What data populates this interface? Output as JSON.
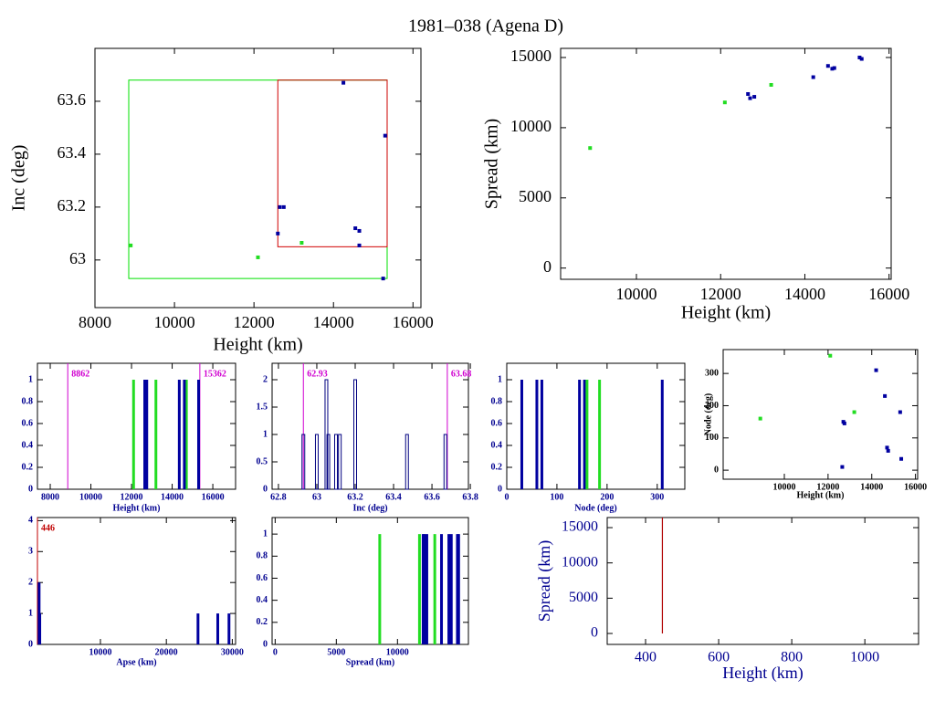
{
  "title": "1981–038 (Agena D)",
  "chart_data": [
    {
      "type": "scatter",
      "xlabel": "Height (km)",
      "ylabel": "Inc (deg)",
      "text_color": "#000000",
      "xlim": [
        8000,
        16200
      ],
      "ylim": [
        62.82,
        63.8
      ],
      "xticks": [
        8000,
        10000,
        12000,
        14000,
        16000
      ],
      "yticks": [
        63,
        63.2,
        63.4,
        63.6
      ],
      "rects": [
        {
          "color": "#00e000",
          "x": [
            8850,
            15350
          ],
          "y": [
            62.93,
            63.68
          ]
        },
        {
          "color": "#d00000",
          "x": [
            12600,
            15350
          ],
          "y": [
            63.05,
            63.68
          ]
        }
      ],
      "series": [
        {
          "color": "#22dd22",
          "x": [
            8900,
            12100,
            13200
          ],
          "values": [
            63.055,
            63.01,
            63.065
          ]
        },
        {
          "color": "#0000a0",
          "x": [
            12650,
            12750,
            12600,
            14250,
            14550,
            14650,
            14650,
            15300,
            15250
          ],
          "values": [
            63.2,
            63.2,
            63.1,
            63.67,
            63.12,
            63.11,
            63.055,
            63.47,
            62.93
          ]
        }
      ]
    },
    {
      "type": "scatter",
      "xlabel": "Height (km)",
      "ylabel": "Spread (km)",
      "text_color": "#000000",
      "xlim": [
        8200,
        16050
      ],
      "ylim": [
        -800,
        15650
      ],
      "xticks": [
        10000,
        12000,
        14000,
        16000
      ],
      "yticks": [
        0,
        5000,
        10000,
        15000
      ],
      "series": [
        {
          "color": "#22dd22",
          "x": [
            8900,
            12100,
            13200
          ],
          "values": [
            8550,
            11800,
            13050
          ]
        },
        {
          "color": "#0000a0",
          "x": [
            12650,
            12700,
            12800,
            14200,
            14550,
            14650,
            14700,
            15300,
            15350
          ],
          "values": [
            12400,
            12100,
            12200,
            13600,
            14400,
            14200,
            14250,
            15000,
            14900
          ]
        }
      ]
    },
    {
      "type": "histogram",
      "xlabel": "Height (km)",
      "text_color": "#000090",
      "xlim": [
        7370,
        17120
      ],
      "ylim": [
        0,
        1.15
      ],
      "xticks": [
        8000,
        10000,
        12000,
        14000,
        16000
      ],
      "yticks": [
        0,
        0.2,
        0.4,
        0.6,
        0.8,
        1
      ],
      "markers": [
        {
          "x": 8862,
          "color": "#d000d0"
        },
        {
          "x": 15362,
          "color": "#d000d0"
        }
      ],
      "series": [
        {
          "color": "#22dd22",
          "x": [
            12100,
            13200,
            14700
          ],
          "values": [
            1,
            1,
            1
          ]
        },
        {
          "color": "#0000a0",
          "x": [
            12650,
            12750,
            14350,
            14600,
            15300
          ],
          "values": [
            1,
            1,
            1,
            1,
            1
          ]
        }
      ]
    },
    {
      "type": "histogram",
      "xlabel": "Inc (deg)",
      "text_color": "#000090",
      "bar_style": "outline",
      "xlim": [
        62.767,
        63.79
      ],
      "ylim": [
        0,
        2.3
      ],
      "xticks": [
        62.8,
        63,
        63.2,
        63.4,
        63.6,
        63.8
      ],
      "yticks": [
        0,
        0.5,
        1,
        1.5,
        2
      ],
      "markers": [
        {
          "x": 62.93,
          "color": "#d000d0"
        },
        {
          "x": 63.68,
          "color": "#d000d0"
        }
      ],
      "series": [
        {
          "color": "#000080",
          "x": [
            62.93,
            63.0,
            63.05,
            63.06,
            63.1,
            63.12,
            63.2,
            63.47,
            63.67
          ],
          "values": [
            1,
            1,
            2,
            1,
            1,
            1,
            2,
            1,
            1
          ]
        }
      ]
    },
    {
      "type": "histogram",
      "xlabel": "Node (deg)",
      "text_color": "#000090",
      "xlim": [
        0,
        355
      ],
      "ylim": [
        0,
        1.15
      ],
      "xticks": [
        0,
        100,
        200,
        300
      ],
      "yticks": [
        0,
        0.2,
        0.4,
        0.6,
        0.8,
        1
      ],
      "series": [
        {
          "color": "#0000a0",
          "x": [
            30,
            60,
            70,
            145,
            155,
            310
          ],
          "values": [
            1,
            1,
            1,
            1,
            1,
            1
          ]
        },
        {
          "color": "#22dd22",
          "x": [
            160,
            185
          ],
          "values": [
            1,
            1
          ]
        }
      ]
    },
    {
      "type": "scatter",
      "xlabel": "Height (km)",
      "ylabel": "Node (deg)",
      "text_color": "#000000",
      "xlim": [
        7200,
        16100
      ],
      "ylim": [
        -28,
        374
      ],
      "xticks": [
        10000,
        12000,
        14000,
        16000
      ],
      "yticks": [
        0,
        100,
        200,
        300
      ],
      "series": [
        {
          "color": "#22dd22",
          "x": [
            8900,
            12100,
            13200
          ],
          "values": [
            160,
            355,
            180
          ]
        },
        {
          "color": "#0000a0",
          "x": [
            12700,
            12750,
            12650,
            14200,
            14600,
            14700,
            14750,
            15300,
            15350
          ],
          "values": [
            150,
            145,
            10,
            310,
            230,
            70,
            60,
            180,
            35
          ]
        }
      ]
    },
    {
      "type": "histogram",
      "xlabel": "Apse (km)",
      "text_color": "#000090",
      "xlim": [
        446,
        30500
      ],
      "ylim": [
        0,
        4.1
      ],
      "xticks": [
        10000,
        20000,
        30000
      ],
      "yticks": [
        0,
        1,
        2,
        3,
        4
      ],
      "markers": [
        {
          "x": 446,
          "color": "#c00000"
        }
      ],
      "series": [
        {
          "color": "#0000a0",
          "x": [
            700,
            800,
            24800,
            27800,
            29500
          ],
          "values": [
            2,
            1,
            1,
            1,
            1
          ]
        }
      ]
    },
    {
      "type": "histogram",
      "xlabel": "Spread (km)",
      "text_color": "#000090",
      "xlim": [
        -250,
        15800
      ],
      "ylim": [
        0,
        1.15
      ],
      "xticks": [
        0,
        5000,
        10000
      ],
      "yticks": [
        0,
        0.2,
        0.4,
        0.6,
        0.8,
        1
      ],
      "series": [
        {
          "color": "#22dd22",
          "x": [
            8550,
            11800,
            13050
          ],
          "values": [
            1,
            1,
            1
          ]
        },
        {
          "color": "#0000a0",
          "x": [
            12100,
            12200,
            12400,
            13600,
            14200,
            14400,
            14900,
            15000
          ],
          "values": [
            1,
            1,
            1,
            1,
            1,
            1,
            1,
            1
          ]
        }
      ]
    },
    {
      "type": "line",
      "xlabel": "Height (km)",
      "ylabel": "Spread (km)",
      "text_color": "#000090",
      "xlim": [
        295,
        1147
      ],
      "ylim": [
        -1550,
        16430
      ],
      "xticks": [
        400,
        600,
        800,
        1000
      ],
      "yticks": [
        0,
        5000,
        10000,
        15000
      ],
      "series": [
        {
          "color": "#b00000",
          "x": [
            446,
            446
          ],
          "values": [
            0,
            16430
          ]
        }
      ]
    }
  ]
}
